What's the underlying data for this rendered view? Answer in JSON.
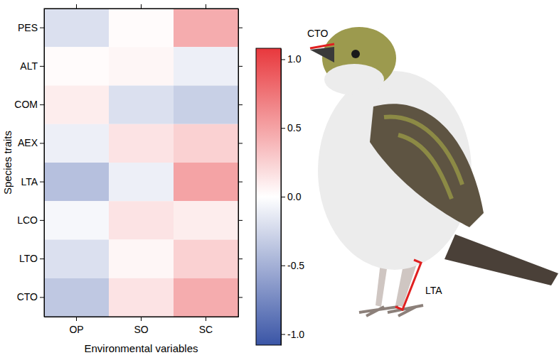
{
  "chart_data": {
    "type": "heatmap",
    "x": [
      "OP",
      "SO",
      "SC"
    ],
    "y": [
      "PES",
      "ALT",
      "COM",
      "AEX",
      "LTA",
      "LCO",
      "LTO",
      "CTO"
    ],
    "xlabel": "Environmental variables",
    "ylabel": "Species traits",
    "values": [
      [
        -0.2,
        0.02,
        0.45
      ],
      [
        0.02,
        0.05,
        -0.1
      ],
      [
        0.1,
        -0.2,
        -0.3
      ],
      [
        -0.1,
        0.15,
        0.25
      ],
      [
        -0.4,
        -0.1,
        0.5
      ],
      [
        -0.05,
        0.15,
        0.1
      ],
      [
        -0.2,
        0.05,
        0.25
      ],
      [
        -0.35,
        0.15,
        0.45
      ]
    ],
    "colorbar_lim": [
      -1.08,
      1.08
    ],
    "colorbar_ticks": [
      {
        "value": -1,
        "label": "-1.0"
      },
      {
        "value": -0.5,
        "label": "-0.5"
      },
      {
        "value": 0,
        "label": "0.0"
      },
      {
        "value": 0.5,
        "label": "0.5"
      },
      {
        "value": 1,
        "label": "1.0"
      }
    ],
    "annotations": [
      "CTO",
      "LTA"
    ]
  }
}
